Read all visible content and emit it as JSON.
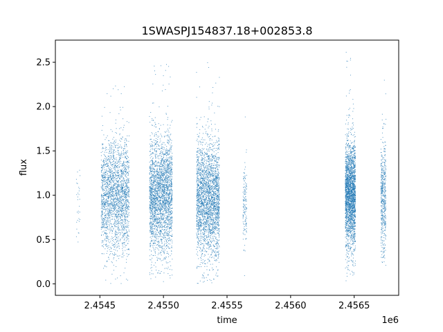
{
  "chart_data": {
    "type": "scatter",
    "title": "1SWASPJ154837.18+002853.8",
    "xlabel": "time",
    "ylabel": "flux",
    "x_offset_label": "1e6",
    "xlim": [
      2.45415,
      2.45685
    ],
    "ylim": [
      -0.13,
      2.75
    ],
    "x_ticks": [
      2.4545,
      2.455,
      2.4555,
      2.456,
      2.4565
    ],
    "x_tick_labels": [
      "2.4545",
      "2.4550",
      "2.4555",
      "2.4560",
      "2.4565"
    ],
    "y_ticks": [
      0.0,
      0.5,
      1.0,
      1.5,
      2.0,
      2.5
    ],
    "y_tick_labels": [
      "0.0",
      "0.5",
      "1.0",
      "1.5",
      "2.0",
      "2.5"
    ],
    "grid": false,
    "marker_color": "#1f77b4",
    "series": [
      {
        "clusters": [
          {
            "x_center": 2.45433,
            "x_width": 1.5e-05,
            "n": 30,
            "y_center": 0.9,
            "y_spread": 0.25,
            "y_min": 0.35,
            "y_max": 1.35
          },
          {
            "x_center": 2.45462,
            "x_width": 0.00011,
            "n": 2200,
            "y_center": 1.0,
            "y_spread": 0.32,
            "y_min": 0.0,
            "y_max": 2.33
          },
          {
            "x_center": 2.45498,
            "x_width": 9e-05,
            "n": 2600,
            "y_center": 1.0,
            "y_spread": 0.33,
            "y_min": 0.02,
            "y_max": 2.54
          },
          {
            "x_center": 2.45535,
            "x_width": 9e-05,
            "n": 2600,
            "y_center": 0.95,
            "y_spread": 0.33,
            "y_min": 0.0,
            "y_max": 2.52
          },
          {
            "x_center": 2.45564,
            "x_width": 1.5e-05,
            "n": 140,
            "y_center": 0.9,
            "y_spread": 0.25,
            "y_min": 0.07,
            "y_max": 1.97
          },
          {
            "x_center": 2.45647,
            "x_width": 4e-05,
            "n": 2400,
            "y_center": 1.0,
            "y_spread": 0.3,
            "y_min": 0.0,
            "y_max": 2.62
          },
          {
            "x_center": 2.45673,
            "x_width": 2e-05,
            "n": 500,
            "y_center": 0.95,
            "y_spread": 0.3,
            "y_min": 0.2,
            "y_max": 2.35
          }
        ]
      }
    ]
  }
}
